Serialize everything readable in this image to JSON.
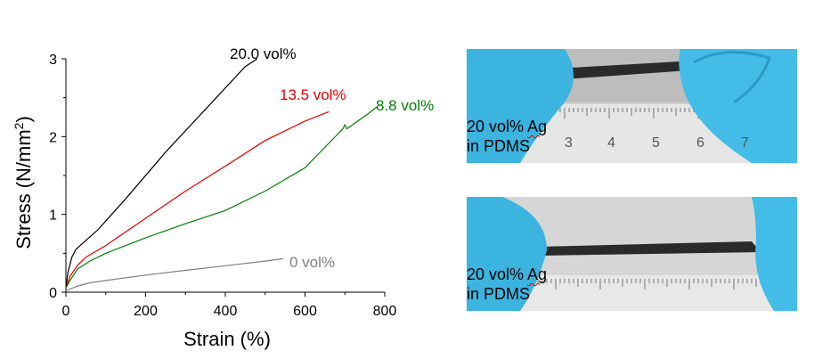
{
  "chart_data": {
    "type": "line",
    "xlabel": "Strain (%)",
    "ylabel": "Stress (N/mm",
    "ylabel_sup": "2",
    "ylabel_close": ")",
    "xlim": [
      0,
      800
    ],
    "ylim": [
      0,
      3
    ],
    "xticks": [
      0,
      200,
      400,
      600,
      800
    ],
    "yticks": [
      0,
      1,
      2,
      3
    ],
    "grid": false,
    "series": [
      {
        "name": "20.0 vol%",
        "color": "#000000",
        "x": [
          0,
          5,
          15,
          25,
          40,
          80,
          150,
          250,
          350,
          450,
          480
        ],
        "y": [
          0.05,
          0.25,
          0.45,
          0.55,
          0.62,
          0.8,
          1.2,
          1.8,
          2.35,
          2.9,
          3.0
        ]
      },
      {
        "name": "13.5 vol%",
        "color": "#e00000",
        "x": [
          0,
          10,
          30,
          50,
          100,
          200,
          300,
          400,
          500,
          600,
          660
        ],
        "y": [
          0.05,
          0.2,
          0.35,
          0.45,
          0.6,
          0.95,
          1.3,
          1.62,
          1.95,
          2.2,
          2.32
        ]
      },
      {
        "name": "8.8 vol%",
        "color": "#008000",
        "x": [
          0,
          10,
          30,
          60,
          100,
          200,
          300,
          400,
          500,
          600,
          695,
          700,
          705,
          760,
          780
        ],
        "y": [
          0.05,
          0.15,
          0.3,
          0.4,
          0.5,
          0.7,
          0.88,
          1.05,
          1.3,
          1.6,
          2.1,
          2.15,
          2.1,
          2.3,
          2.38
        ]
      },
      {
        "name": "0 vol%",
        "color": "#808080",
        "x": [
          0,
          30,
          60,
          100,
          200,
          300,
          400,
          500,
          545
        ],
        "y": [
          0.02,
          0.08,
          0.12,
          0.15,
          0.22,
          0.28,
          0.34,
          0.4,
          0.43
        ]
      }
    ]
  },
  "photos": {
    "top_caption_line1_a": "20 vol% ",
    "top_caption_line1_b": "Ag",
    "top_caption_line2": "in PDMS",
    "bottom_caption_line1_a": "20 vol% ",
    "bottom_caption_line1_b": "Ag",
    "bottom_caption_line2": "in PDMS",
    "ruler_top_numbers": [
      "3",
      "4",
      "5",
      "6",
      "7"
    ],
    "colors": {
      "glove": "#3cb4e0",
      "background": "#d2d2d2",
      "sample": "#2a2a2a",
      "ruler": "#e8e8e8"
    }
  }
}
